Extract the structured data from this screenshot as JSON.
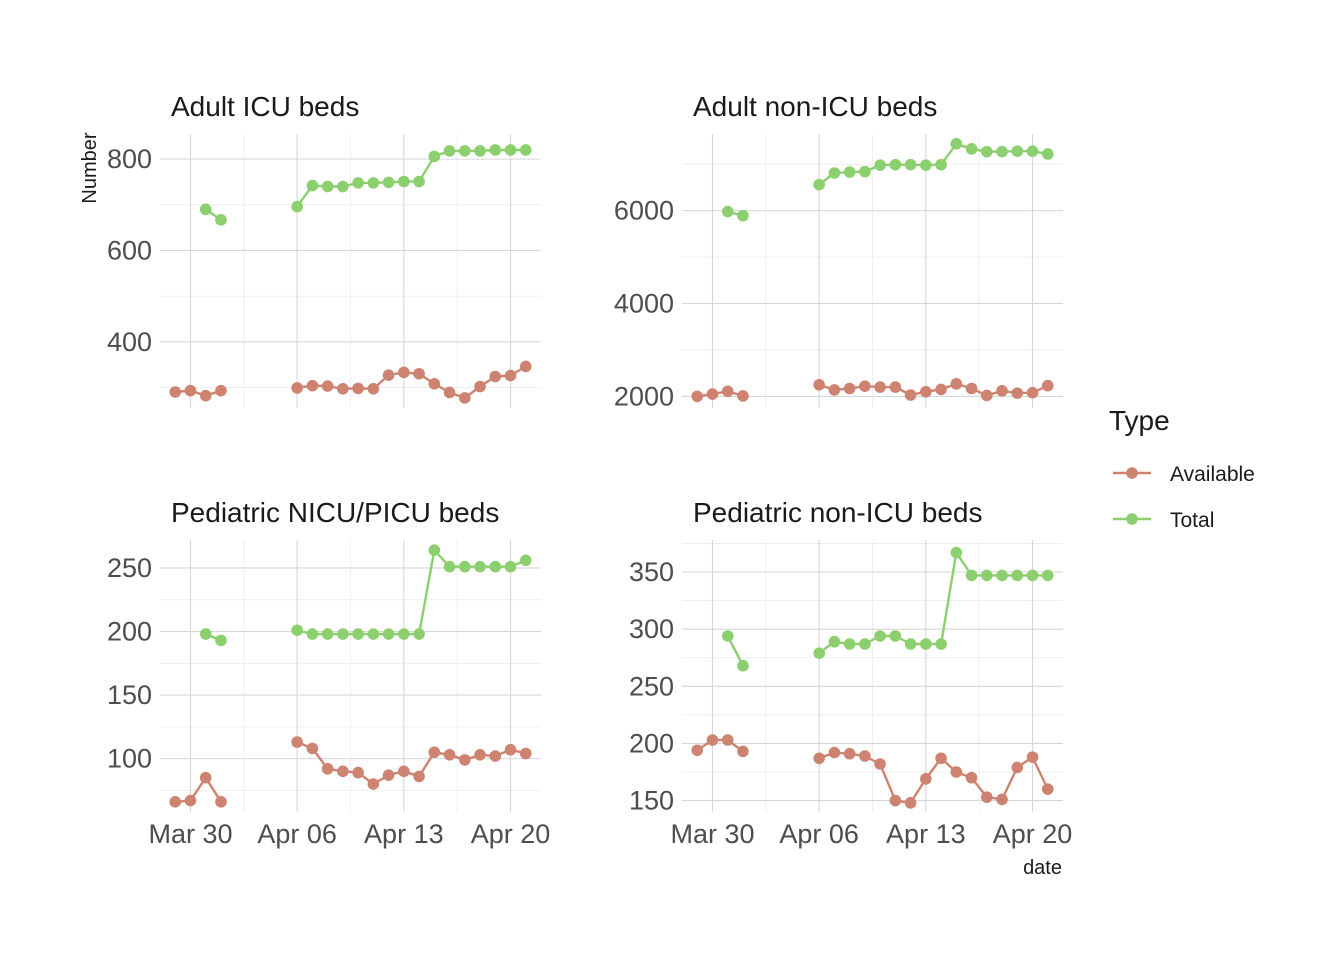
{
  "chart_data": {
    "type": "line",
    "ylabel": "Number",
    "xlabel": "date",
    "legend": {
      "title": "Type",
      "placement": "right",
      "entries": [
        {
          "name": "Available",
          "color": "#cd8370"
        },
        {
          "name": "Total",
          "color": "#8ccf6e"
        }
      ]
    },
    "x_tick_labels": [
      "Mar 30",
      "Apr 06",
      "Apr 13",
      "Apr 20"
    ],
    "x_tick_dates": [
      "2020-03-30",
      "2020-04-06",
      "2020-04-13",
      "2020-04-20"
    ],
    "xlim": [
      "2020-03-28",
      "2020-04-22"
    ],
    "grid": true,
    "panels": [
      {
        "title": "Adult ICU beds",
        "ylim": [
          255,
          855
        ],
        "y_ticks": [
          400,
          600,
          800
        ],
        "series": [
          {
            "name": "Available",
            "points": [
              [
                "2020-03-29",
                290
              ],
              [
                "2020-03-30",
                293
              ],
              [
                "2020-03-31",
                282
              ],
              [
                "2020-04-01",
                293
              ],
              null,
              [
                "2020-04-06",
                299
              ],
              [
                "2020-04-07",
                304
              ],
              [
                "2020-04-08",
                303
              ],
              [
                "2020-04-09",
                297
              ],
              [
                "2020-04-10",
                298
              ],
              [
                "2020-04-11",
                297
              ],
              [
                "2020-04-12",
                327
              ],
              [
                "2020-04-13",
                333
              ],
              [
                "2020-04-14",
                330
              ],
              [
                "2020-04-15",
                308
              ],
              [
                "2020-04-16",
                289
              ],
              [
                "2020-04-17",
                277
              ],
              [
                "2020-04-18",
                302
              ],
              [
                "2020-04-19",
                324
              ],
              [
                "2020-04-20",
                326
              ],
              [
                "2020-04-21",
                346
              ]
            ]
          },
          {
            "name": "Total",
            "points": [
              [
                "2020-03-31",
                690
              ],
              [
                "2020-04-01",
                667
              ],
              null,
              [
                "2020-04-06",
                696
              ],
              [
                "2020-04-07",
                742
              ],
              [
                "2020-04-08",
                740
              ],
              [
                "2020-04-09",
                740
              ],
              [
                "2020-04-10",
                748
              ],
              [
                "2020-04-11",
                748
              ],
              [
                "2020-04-12",
                749
              ],
              [
                "2020-04-13",
                751
              ],
              [
                "2020-04-14",
                751
              ],
              [
                "2020-04-15",
                806
              ],
              [
                "2020-04-16",
                818
              ],
              [
                "2020-04-17",
                818
              ],
              [
                "2020-04-18",
                818
              ],
              [
                "2020-04-19",
                820
              ],
              [
                "2020-04-20",
                820
              ],
              [
                "2020-04-21",
                820
              ]
            ]
          }
        ]
      },
      {
        "title": "Adult non-ICU beds",
        "ylim": [
          1750,
          7650
        ],
        "y_ticks": [
          2000,
          4000,
          6000
        ],
        "series": [
          {
            "name": "Available",
            "points": [
              [
                "2020-03-29",
                2000
              ],
              [
                "2020-03-30",
                2050
              ],
              [
                "2020-03-31",
                2110
              ],
              [
                "2020-04-01",
                2010
              ],
              null,
              [
                "2020-04-06",
                2250
              ],
              [
                "2020-04-07",
                2140
              ],
              [
                "2020-04-08",
                2170
              ],
              [
                "2020-04-09",
                2220
              ],
              [
                "2020-04-10",
                2200
              ],
              [
                "2020-04-11",
                2200
              ],
              [
                "2020-04-12",
                2030
              ],
              [
                "2020-04-13",
                2100
              ],
              [
                "2020-04-14",
                2150
              ],
              [
                "2020-04-15",
                2270
              ],
              [
                "2020-04-16",
                2170
              ],
              [
                "2020-04-17",
                2020
              ],
              [
                "2020-04-18",
                2120
              ],
              [
                "2020-04-19",
                2070
              ],
              [
                "2020-04-20",
                2080
              ],
              [
                "2020-04-21",
                2230
              ]
            ]
          },
          {
            "name": "Total",
            "points": [
              [
                "2020-03-31",
                5980
              ],
              [
                "2020-04-01",
                5890
              ],
              null,
              [
                "2020-04-06",
                6560
              ],
              [
                "2020-04-07",
                6810
              ],
              [
                "2020-04-08",
                6830
              ],
              [
                "2020-04-09",
                6840
              ],
              [
                "2020-04-10",
                6980
              ],
              [
                "2020-04-11",
                6990
              ],
              [
                "2020-04-12",
                6990
              ],
              [
                "2020-04-13",
                6980
              ],
              [
                "2020-04-14",
                6990
              ],
              [
                "2020-04-15",
                7440
              ],
              [
                "2020-04-16",
                7330
              ],
              [
                "2020-04-17",
                7270
              ],
              [
                "2020-04-18",
                7270
              ],
              [
                "2020-04-19",
                7280
              ],
              [
                "2020-04-20",
                7280
              ],
              [
                "2020-04-21",
                7220
              ]
            ]
          }
        ]
      },
      {
        "title": "Pediatric NICU/PICU beds",
        "ylim": [
          58,
          272
        ],
        "y_ticks": [
          100,
          150,
          200,
          250
        ],
        "series": [
          {
            "name": "Available",
            "points": [
              [
                "2020-03-29",
                66
              ],
              [
                "2020-03-30",
                67
              ],
              [
                "2020-03-31",
                85
              ],
              [
                "2020-04-01",
                66
              ],
              null,
              [
                "2020-04-06",
                113
              ],
              [
                "2020-04-07",
                108
              ],
              [
                "2020-04-08",
                92
              ],
              [
                "2020-04-09",
                90
              ],
              [
                "2020-04-10",
                89
              ],
              [
                "2020-04-11",
                80
              ],
              [
                "2020-04-12",
                87
              ],
              [
                "2020-04-13",
                90
              ],
              [
                "2020-04-14",
                86
              ],
              [
                "2020-04-15",
                105
              ],
              [
                "2020-04-16",
                103
              ],
              [
                "2020-04-17",
                99
              ],
              [
                "2020-04-18",
                103
              ],
              [
                "2020-04-19",
                102
              ],
              [
                "2020-04-20",
                107
              ],
              [
                "2020-04-21",
                104
              ]
            ]
          },
          {
            "name": "Total",
            "points": [
              [
                "2020-03-31",
                198
              ],
              [
                "2020-04-01",
                193
              ],
              null,
              [
                "2020-04-06",
                201
              ],
              [
                "2020-04-07",
                198
              ],
              [
                "2020-04-08",
                198
              ],
              [
                "2020-04-09",
                198
              ],
              [
                "2020-04-10",
                198
              ],
              [
                "2020-04-11",
                198
              ],
              [
                "2020-04-12",
                198
              ],
              [
                "2020-04-13",
                198
              ],
              [
                "2020-04-14",
                198
              ],
              [
                "2020-04-15",
                264
              ],
              [
                "2020-04-16",
                251
              ],
              [
                "2020-04-17",
                251
              ],
              [
                "2020-04-18",
                251
              ],
              [
                "2020-04-19",
                251
              ],
              [
                "2020-04-20",
                251
              ],
              [
                "2020-04-21",
                256
              ]
            ]
          }
        ]
      },
      {
        "title": "Pediatric non-ICU beds",
        "ylim": [
          140,
          378
        ],
        "y_ticks": [
          150,
          200,
          250,
          300,
          350
        ],
        "series": [
          {
            "name": "Available",
            "points": [
              [
                "2020-03-29",
                194
              ],
              [
                "2020-03-30",
                203
              ],
              [
                "2020-03-31",
                203
              ],
              [
                "2020-04-01",
                193
              ],
              null,
              [
                "2020-04-06",
                187
              ],
              [
                "2020-04-07",
                192
              ],
              [
                "2020-04-08",
                191
              ],
              [
                "2020-04-09",
                189
              ],
              [
                "2020-04-10",
                182
              ],
              [
                "2020-04-11",
                150
              ],
              [
                "2020-04-12",
                148
              ],
              [
                "2020-04-13",
                169
              ],
              [
                "2020-04-14",
                187
              ],
              [
                "2020-04-15",
                175
              ],
              [
                "2020-04-16",
                170
              ],
              [
                "2020-04-17",
                153
              ],
              [
                "2020-04-18",
                151
              ],
              [
                "2020-04-19",
                179
              ],
              [
                "2020-04-20",
                188
              ],
              [
                "2020-04-21",
                160
              ]
            ]
          },
          {
            "name": "Total",
            "points": [
              [
                "2020-03-31",
                294
              ],
              [
                "2020-04-01",
                268
              ],
              null,
              [
                "2020-04-06",
                279
              ],
              [
                "2020-04-07",
                289
              ],
              [
                "2020-04-08",
                287
              ],
              [
                "2020-04-09",
                287
              ],
              [
                "2020-04-10",
                294
              ],
              [
                "2020-04-11",
                294
              ],
              [
                "2020-04-12",
                287
              ],
              [
                "2020-04-13",
                287
              ],
              [
                "2020-04-14",
                287
              ],
              [
                "2020-04-15",
                367
              ],
              [
                "2020-04-16",
                347
              ],
              [
                "2020-04-17",
                347
              ],
              [
                "2020-04-18",
                347
              ],
              [
                "2020-04-19",
                347
              ],
              [
                "2020-04-20",
                347
              ],
              [
                "2020-04-21",
                347
              ]
            ]
          }
        ]
      }
    ]
  }
}
